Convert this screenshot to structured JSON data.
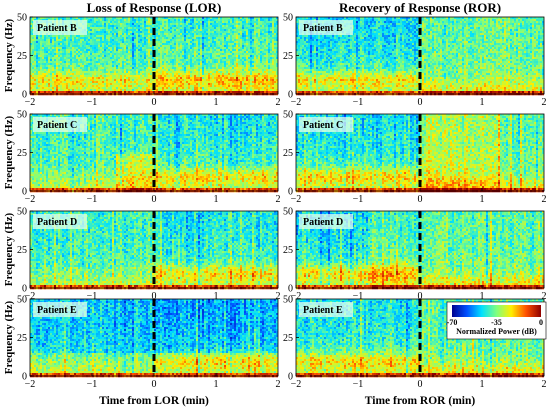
{
  "chart_data": {
    "type": "heatmap",
    "columns": [
      {
        "key": "lor",
        "title": "Loss of Response (LOR)",
        "xlabel": "Time from LOR (min)"
      },
      {
        "key": "ror",
        "title": "Recovery of Response (ROR)",
        "xlabel": "Time from ROR (min)"
      }
    ],
    "rows": [
      {
        "patient": "Patient B"
      },
      {
        "patient": "Patient C"
      },
      {
        "patient": "Patient D"
      },
      {
        "patient": "Patient E"
      }
    ],
    "ylabel": "Frequency (Hz)",
    "xlim": [
      -2,
      2
    ],
    "xticks": [
      -2,
      -1,
      0,
      1,
      2
    ],
    "xtick_labels": [
      "−2",
      "−1",
      "0",
      "1",
      "2"
    ],
    "ylim": [
      0,
      50
    ],
    "yticks": [
      0,
      25,
      50
    ],
    "event_line_x": 0,
    "colorbar": {
      "label": "Normalized Power (dB)",
      "range": [
        -70,
        0
      ],
      "ticks": [
        -70,
        -35,
        0
      ],
      "tick_labels": [
        "-70",
        "-35",
        "0"
      ],
      "colors": [
        "#00008f",
        "#0050ff",
        "#00e0ff",
        "#7fff7f",
        "#ffee00",
        "#ff5000",
        "#8f0000"
      ]
    }
  }
}
